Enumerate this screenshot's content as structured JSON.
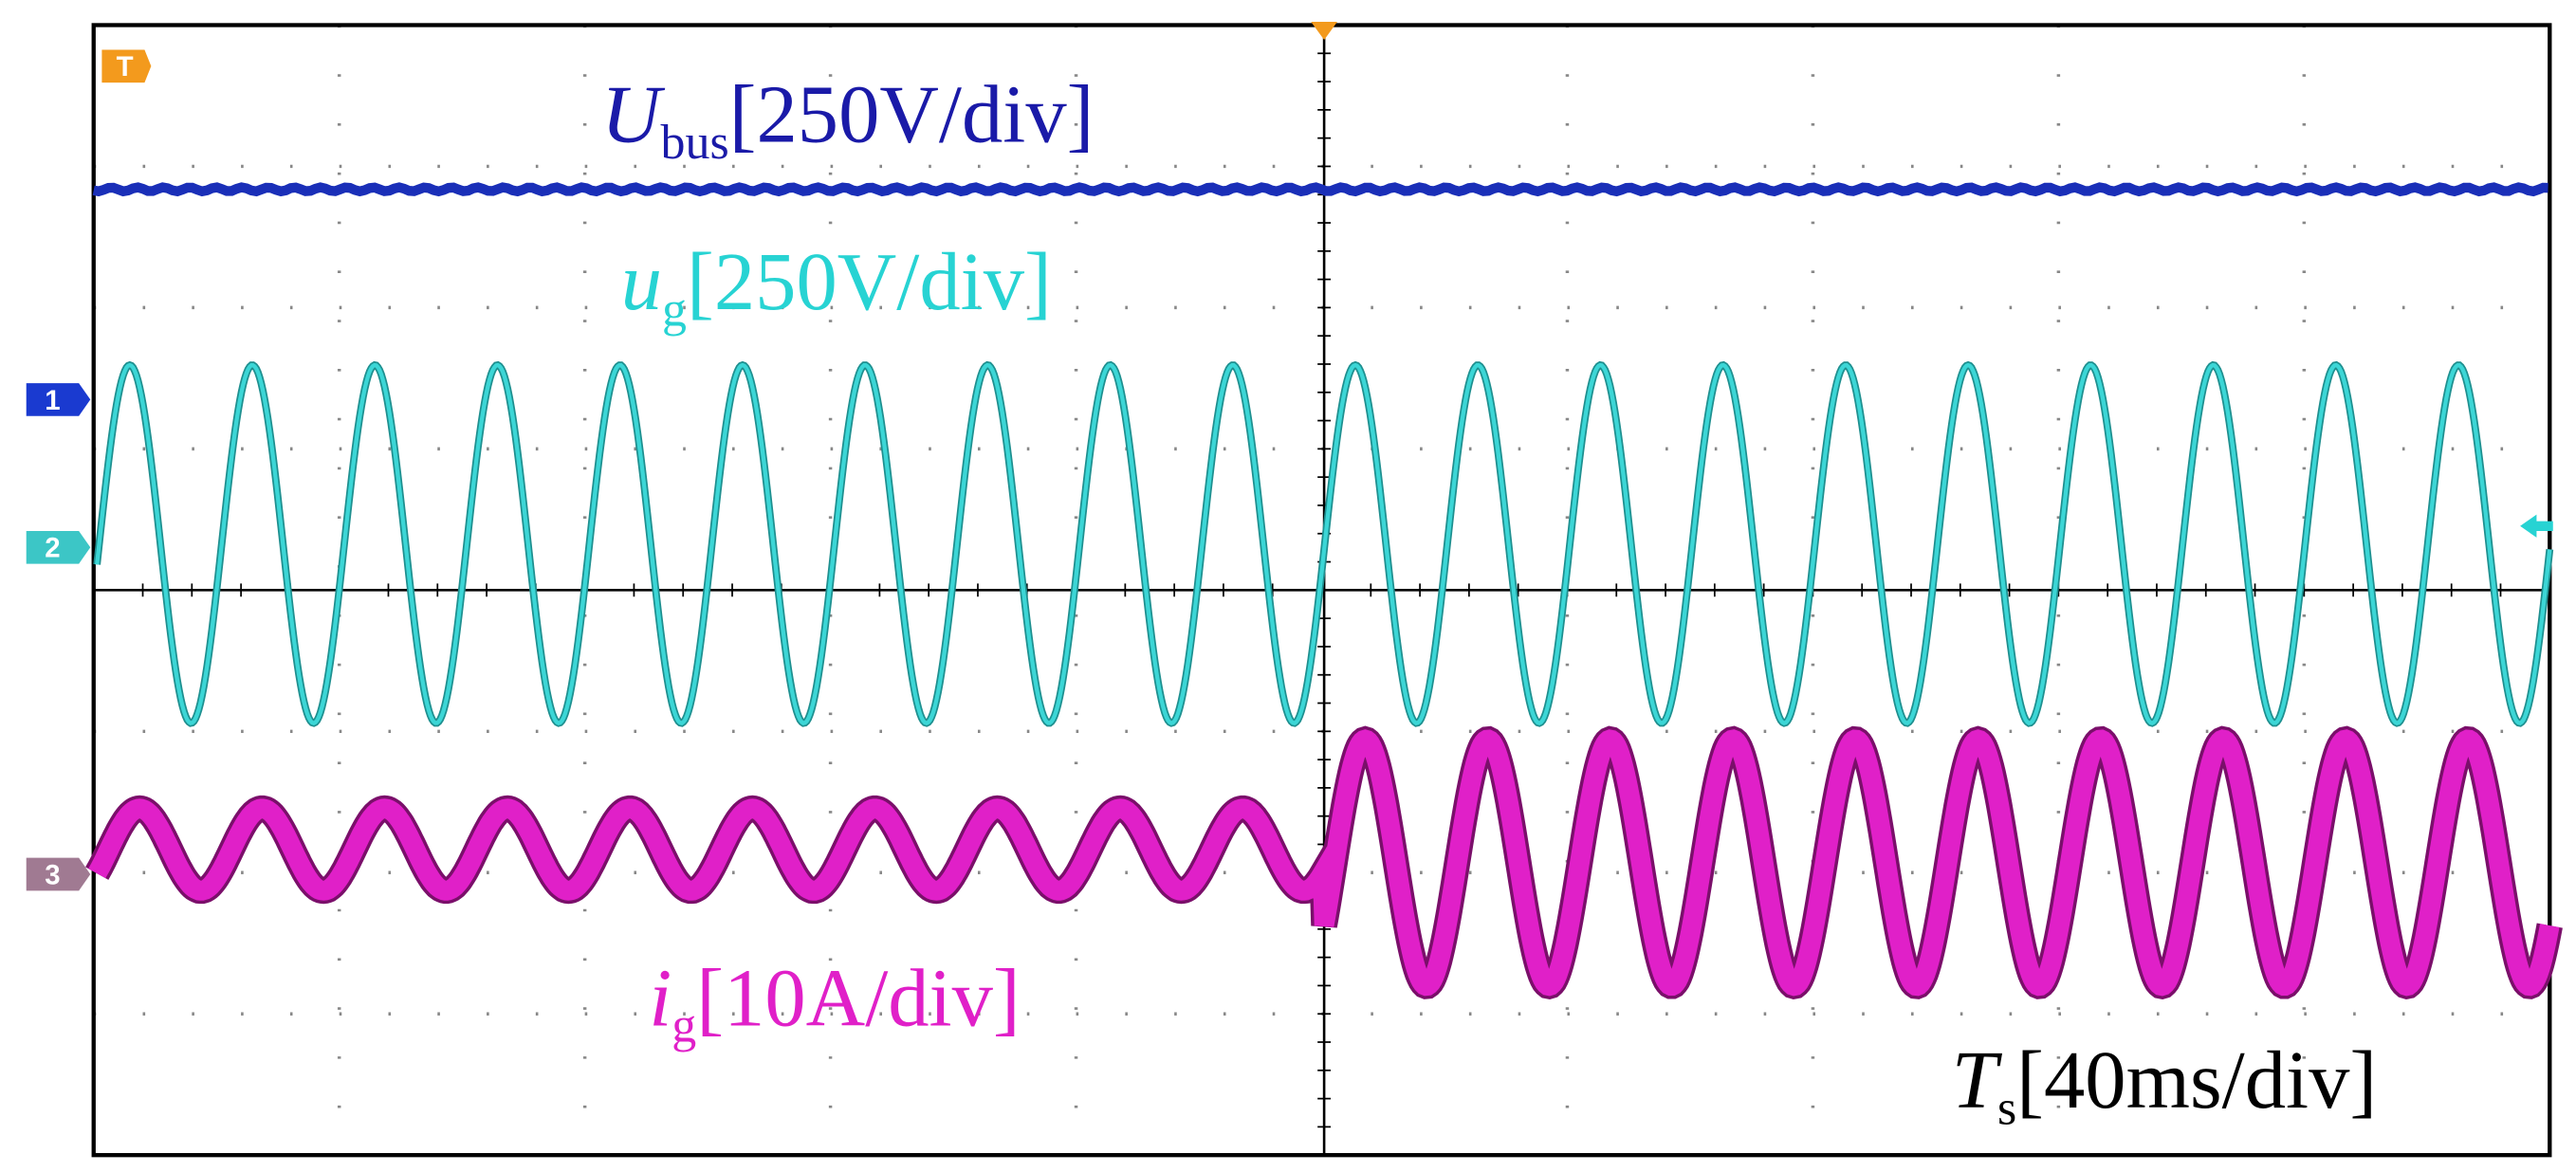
{
  "labels": {
    "u_bus": {
      "symbol": "U",
      "subscript": "bus",
      "scale": "[250V/div]"
    },
    "u_g": {
      "symbol": "u",
      "subscript": "g",
      "scale": "[250V/div]"
    },
    "i_g": {
      "symbol": "i",
      "subscript": "g",
      "scale": "[10A/div]"
    },
    "t_s": {
      "symbol": "T",
      "subscript": "s",
      "scale": "[40ms/div]"
    }
  },
  "markers": {
    "trigger": "T",
    "ch1": "1",
    "ch2": "2",
    "ch3": "3"
  }
}
